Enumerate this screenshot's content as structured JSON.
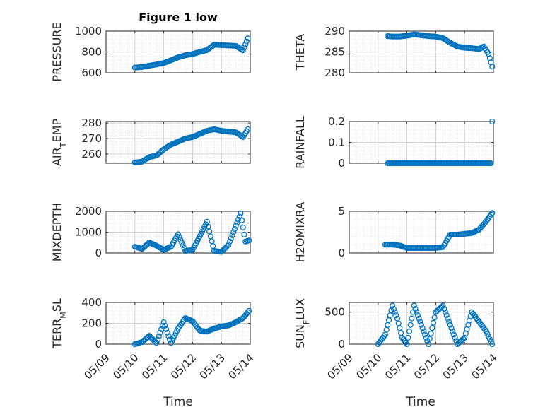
{
  "figure": {
    "title": "Figure 1 low",
    "xlabel": "Time",
    "x_tick_labels": [
      "05/09",
      "05/10",
      "05/11",
      "05/12",
      "05/13",
      "05/14"
    ]
  },
  "colors": {
    "marker": "#0072BD",
    "grid": "#d6d6d6",
    "axes": "#262626"
  },
  "chart_data": [
    {
      "type": "scatter",
      "id": "pressure",
      "ylabel_parts": [
        [
          "PRESSURE",
          ""
        ]
      ],
      "xlim": [
        "05/09",
        "05/14"
      ],
      "ylim": [
        600,
        1000
      ],
      "yticks": [
        600,
        800,
        1000
      ],
      "x": [
        "05/10 00:00",
        "05/10 06:00",
        "05/10 12:00",
        "05/10 18:00",
        "05/11 00:00",
        "05/11 06:00",
        "05/11 12:00",
        "05/11 18:00",
        "05/12 00:00",
        "05/12 06:00",
        "05/12 12:00",
        "05/12 18:00",
        "05/13 00:00",
        "05/13 06:00",
        "05/13 12:00",
        "05/13 18:00",
        "05/13 22:00"
      ],
      "y": [
        650,
        655,
        668,
        680,
        693,
        720,
        748,
        768,
        780,
        800,
        818,
        870,
        865,
        862,
        858,
        815,
        930
      ]
    },
    {
      "type": "scatter",
      "id": "theta",
      "ylabel_parts": [
        [
          "THETA",
          ""
        ]
      ],
      "xlim": [
        "05/09",
        "05/14"
      ],
      "ylim": [
        280,
        290
      ],
      "yticks": [
        280,
        285,
        290
      ],
      "x": [
        "05/10 08:00",
        "05/10 12:00",
        "05/10 18:00",
        "05/11 00:00",
        "05/11 06:00",
        "05/11 12:00",
        "05/11 18:00",
        "05/12 00:00",
        "05/12 06:00",
        "05/12 12:00",
        "05/12 18:00",
        "05/13 00:00",
        "05/13 06:00",
        "05/13 12:00",
        "05/13 16:00",
        "05/13 20:00",
        "05/13 23:00"
      ],
      "y": [
        288.8,
        288.7,
        288.7,
        288.9,
        289.2,
        289.0,
        288.8,
        288.7,
        288.3,
        287.2,
        286.3,
        286.0,
        285.9,
        285.7,
        286.3,
        284.5,
        281.5
      ]
    },
    {
      "type": "scatter",
      "id": "air_temp",
      "ylabel_parts": [
        [
          "AIR",
          ""
        ],
        [
          "T",
          "sub"
        ],
        [
          "EMP",
          ""
        ]
      ],
      "xlim": [
        "05/09",
        "05/14"
      ],
      "ylim": [
        254,
        281
      ],
      "yticks": [
        260,
        270,
        280
      ],
      "x": [
        "05/10 00:00",
        "05/10 06:00",
        "05/10 12:00",
        "05/10 18:00",
        "05/11 00:00",
        "05/11 06:00",
        "05/11 12:00",
        "05/11 18:00",
        "05/12 00:00",
        "05/12 06:00",
        "05/12 12:00",
        "05/12 18:00",
        "05/13 00:00",
        "05/13 06:00",
        "05/13 12:00",
        "05/13 18:00",
        "05/13 22:00"
      ],
      "y": [
        254.5,
        255,
        258,
        259,
        263,
        266,
        268,
        270,
        271,
        273,
        275,
        276,
        275,
        274.5,
        274,
        271,
        276
      ]
    },
    {
      "type": "scatter",
      "id": "rainfall",
      "ylabel_parts": [
        [
          "RAINFALL",
          ""
        ]
      ],
      "xlim": [
        "05/09",
        "05/14"
      ],
      "ylim": [
        0,
        0.2
      ],
      "yticks": [
        0,
        0.1,
        0.2
      ],
      "x": [
        "05/10 08:00",
        "05/10 16:00",
        "05/11 00:00",
        "05/11 08:00",
        "05/11 16:00",
        "05/12 00:00",
        "05/12 08:00",
        "05/12 16:00",
        "05/13 00:00",
        "05/13 08:00",
        "05/13 16:00",
        "05/13 22:00",
        "05/13 23:00"
      ],
      "y": [
        0,
        0,
        0,
        0,
        0,
        0,
        0,
        0,
        0,
        0,
        0,
        0,
        0.2
      ]
    },
    {
      "type": "scatter",
      "id": "mixdepth",
      "ylabel_parts": [
        [
          "MIXDEPTH",
          ""
        ]
      ],
      "xlim": [
        "05/09",
        "05/14"
      ],
      "ylim": [
        0,
        2000
      ],
      "yticks": [
        0,
        1000,
        2000
      ],
      "x": [
        "05/10 00:00",
        "05/10 06:00",
        "05/10 12:00",
        "05/10 18:00",
        "05/11 00:00",
        "05/11 06:00",
        "05/11 12:00",
        "05/11 18:00",
        "05/12 00:00",
        "05/12 06:00",
        "05/12 12:00",
        "05/12 18:00",
        "05/13 00:00",
        "05/13 06:00",
        "05/13 12:00",
        "05/13 16:00",
        "05/13 20:00",
        "05/13 23:00"
      ],
      "y": [
        300,
        200,
        500,
        350,
        150,
        300,
        900,
        100,
        150,
        800,
        1500,
        100,
        50,
        400,
        1300,
        1900,
        550,
        600
      ]
    },
    {
      "type": "scatter",
      "id": "h2omixra",
      "ylabel_parts": [
        [
          "H2OMIXRA",
          ""
        ]
      ],
      "xlim": [
        "05/09",
        "05/14"
      ],
      "ylim": [
        0,
        5
      ],
      "yticks": [
        0,
        5
      ],
      "x": [
        "05/10 06:00",
        "05/10 12:00",
        "05/10 18:00",
        "05/11 00:00",
        "05/11 06:00",
        "05/11 12:00",
        "05/11 18:00",
        "05/12 00:00",
        "05/12 06:00",
        "05/12 12:00",
        "05/12 18:00",
        "05/13 00:00",
        "05/13 06:00",
        "05/13 12:00",
        "05/13 18:00",
        "05/13 23:00"
      ],
      "y": [
        1.0,
        1.0,
        0.9,
        0.6,
        0.6,
        0.6,
        0.6,
        0.6,
        0.7,
        2.2,
        2.2,
        2.3,
        2.4,
        2.8,
        3.8,
        4.8
      ]
    },
    {
      "type": "scatter",
      "id": "terr_msl",
      "ylabel_parts": [
        [
          "TERR",
          ""
        ],
        [
          "M",
          "sub"
        ],
        [
          "SL",
          ""
        ]
      ],
      "xlim": [
        "05/09",
        "05/14"
      ],
      "ylim": [
        0,
        400
      ],
      "yticks": [
        0,
        200,
        400
      ],
      "x": [
        "05/10 00:00",
        "05/10 06:00",
        "05/10 12:00",
        "05/10 18:00",
        "05/11 00:00",
        "05/11 06:00",
        "05/11 12:00",
        "05/11 18:00",
        "05/12 00:00",
        "05/12 06:00",
        "05/12 12:00",
        "05/12 18:00",
        "05/13 00:00",
        "05/13 06:00",
        "05/13 12:00",
        "05/13 18:00",
        "05/13 23:00"
      ],
      "y": [
        0,
        20,
        80,
        10,
        210,
        10,
        150,
        250,
        220,
        130,
        120,
        150,
        170,
        180,
        210,
        250,
        320
      ]
    },
    {
      "type": "scatter",
      "id": "sun_flux",
      "ylabel_parts": [
        [
          "SUN",
          ""
        ],
        [
          "F",
          "sub"
        ],
        [
          "LUX",
          ""
        ]
      ],
      "xlim": [
        "05/09",
        "05/14"
      ],
      "ylim": [
        0,
        650
      ],
      "yticks": [
        0,
        500
      ],
      "x": [
        "05/10 00:00",
        "05/10 06:00",
        "05/10 12:00",
        "05/10 16:00",
        "05/10 20:00",
        "05/11 00:00",
        "05/11 06:00",
        "05/11 12:00",
        "05/11 18:00",
        "05/12 00:00",
        "05/12 06:00",
        "05/12 12:00",
        "05/12 18:00",
        "05/13 00:00",
        "05/13 06:00",
        "05/13 12:00",
        "05/13 18:00",
        "05/13 23:00"
      ],
      "y": [
        0,
        150,
        600,
        400,
        100,
        0,
        600,
        300,
        0,
        500,
        600,
        300,
        0,
        100,
        500,
        350,
        200,
        0
      ]
    }
  ]
}
